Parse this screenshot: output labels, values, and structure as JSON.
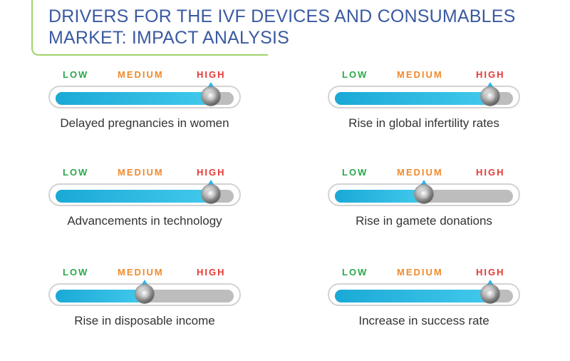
{
  "header": {
    "title_line1": "DRIVERS FOR THE IVF DEVICES AND CONSUMABLES",
    "title_line2": "MARKET: IMPACT ANALYSIS"
  },
  "scale_labels": {
    "low": "LOW",
    "medium": "MEDIUM",
    "high": "HIGH"
  },
  "colors": {
    "title": "#3a5aa0",
    "low": "#2ba84a",
    "medium": "#f08a2c",
    "high": "#e53935",
    "fill": "#1aa9d6",
    "accent_line": "#9ed36a"
  },
  "drivers": [
    {
      "label": "Delayed pregnancies in women",
      "level": 0.87
    },
    {
      "label": "Rise in global infertility rates",
      "level": 0.87
    },
    {
      "label": "Advancements in technology",
      "level": 0.87
    },
    {
      "label": "Rise in gamete donations",
      "level": 0.5
    },
    {
      "label": "Rise in disposable income",
      "level": 0.5
    },
    {
      "label": "Increase in success rate",
      "level": 0.87
    }
  ]
}
